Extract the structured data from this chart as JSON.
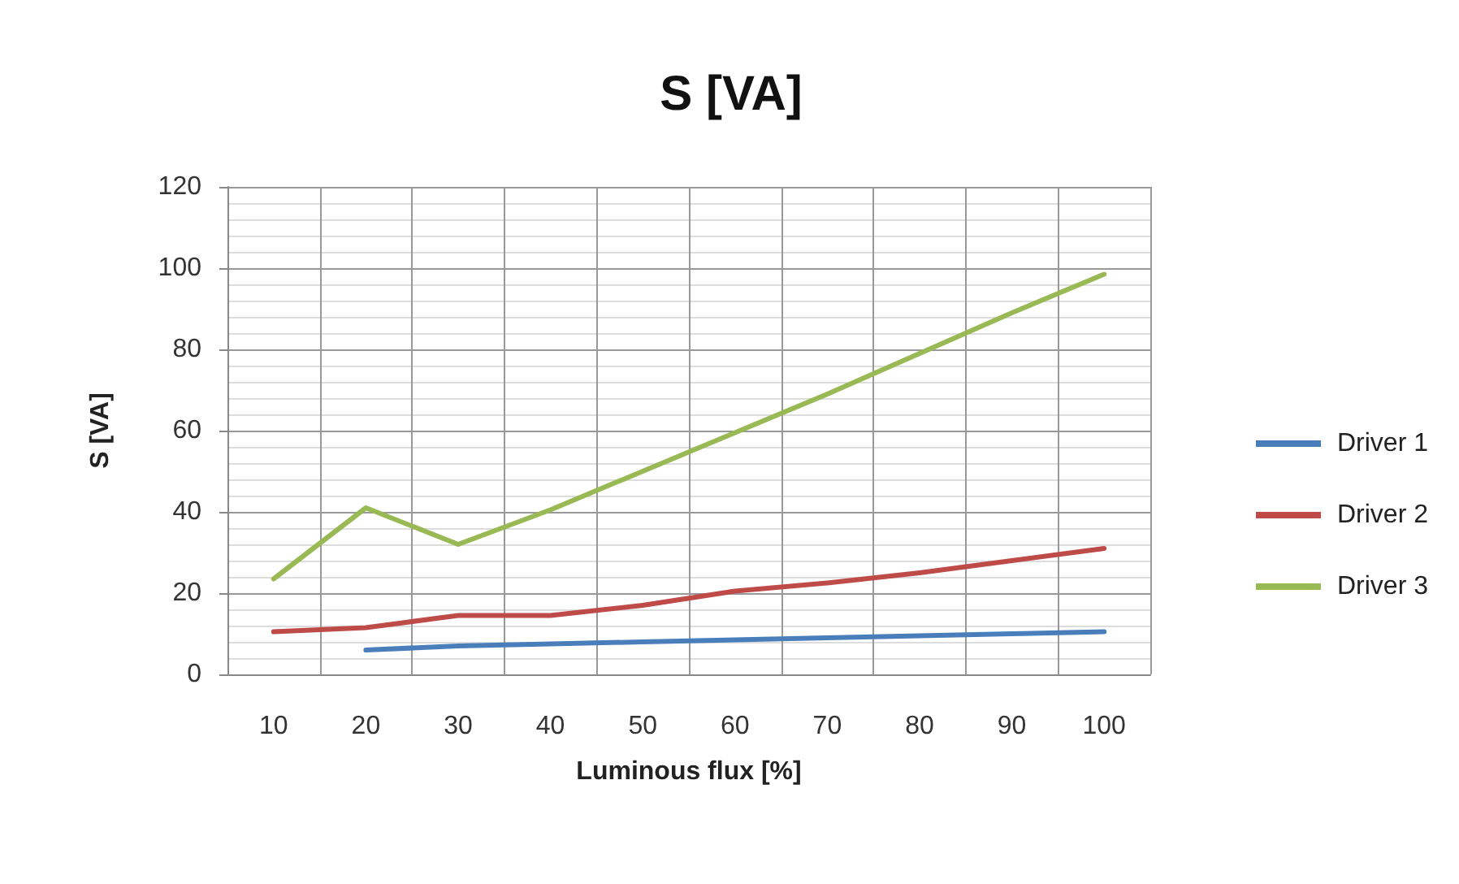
{
  "chart_data": {
    "type": "line",
    "title": "S [VA]",
    "xlabel": "Luminous flux [%]",
    "ylabel": "S [VA]",
    "categories": [
      "10",
      "20",
      "30",
      "40",
      "50",
      "60",
      "70",
      "80",
      "90",
      "100"
    ],
    "series": [
      {
        "name": "Driver 1",
        "color": "#4a7ebb",
        "values": [
          null,
          6,
          7,
          7.5,
          8,
          8.5,
          9,
          9.5,
          10,
          10.5
        ]
      },
      {
        "name": "Driver 2",
        "color": "#be4b48",
        "values": [
          10.5,
          11.5,
          14.5,
          14.5,
          17,
          20.5,
          22.5,
          25,
          28,
          31
        ]
      },
      {
        "name": "Driver 3",
        "color": "#98b954",
        "values": [
          23.5,
          41,
          32,
          40.5,
          50,
          59.5,
          69,
          79,
          89,
          98.5
        ]
      }
    ],
    "ylim": [
      0,
      120
    ],
    "yticks": [
      0,
      20,
      40,
      60,
      80,
      100,
      120
    ],
    "grid": true,
    "legend": "right",
    "marker": "none",
    "line_style": "solid"
  }
}
